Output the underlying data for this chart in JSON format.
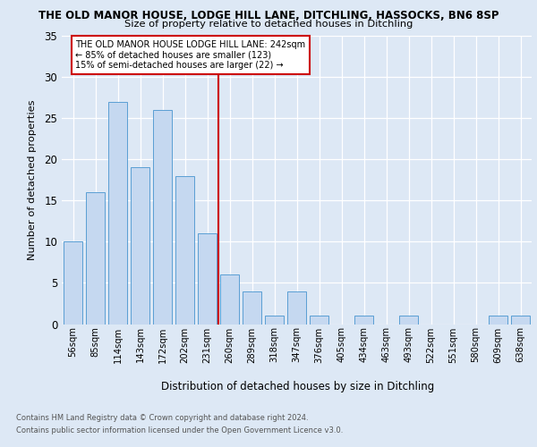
{
  "title1": "THE OLD MANOR HOUSE, LODGE HILL LANE, DITCHLING, HASSOCKS, BN6 8SP",
  "title2": "Size of property relative to detached houses in Ditchling",
  "xlabel": "Distribution of detached houses by size in Ditchling",
  "ylabel": "Number of detached properties",
  "categories": [
    "56sqm",
    "85sqm",
    "114sqm",
    "143sqm",
    "172sqm",
    "202sqm",
    "231sqm",
    "260sqm",
    "289sqm",
    "318sqm",
    "347sqm",
    "376sqm",
    "405sqm",
    "434sqm",
    "463sqm",
    "493sqm",
    "522sqm",
    "551sqm",
    "580sqm",
    "609sqm",
    "638sqm"
  ],
  "values": [
    10,
    16,
    27,
    19,
    26,
    18,
    11,
    6,
    4,
    1,
    4,
    1,
    0,
    1,
    0,
    1,
    0,
    0,
    0,
    1,
    1
  ],
  "bar_color": "#c5d8f0",
  "bar_edge_color": "#5a9fd4",
  "vline_x": 6.5,
  "vline_color": "#cc0000",
  "ylim": [
    0,
    35
  ],
  "yticks": [
    0,
    5,
    10,
    15,
    20,
    25,
    30,
    35
  ],
  "annotation_line1": "THE OLD MANOR HOUSE LODGE HILL LANE: 242sqm",
  "annotation_line2": "← 85% of detached houses are smaller (123)",
  "annotation_line3": "15% of semi-detached houses are larger (22) →",
  "footnote1": "Contains HM Land Registry data © Crown copyright and database right 2024.",
  "footnote2": "Contains public sector information licensed under the Open Government Licence v3.0.",
  "bg_color": "#dde8f5",
  "plot_bg_color": "#dde8f5"
}
